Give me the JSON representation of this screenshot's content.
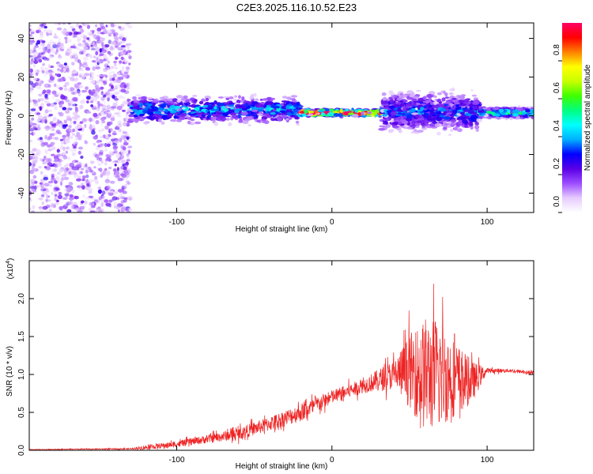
{
  "figure": {
    "title": "C2E3.2025.116.10.52.E23"
  },
  "chart_data": [
    {
      "type": "heatmap",
      "title": "C2E3.2025.116.10.52.E23",
      "xlabel": "Height of straight line (km)",
      "ylabel": "Frequency (Hz)",
      "xlim": [
        -195,
        130
      ],
      "ylim": [
        -50,
        48
      ],
      "xticks": [
        -100,
        0,
        100
      ],
      "xtick_labels": [
        "-100",
        "0",
        "100"
      ],
      "yticks": [
        -40,
        -20,
        0,
        20,
        40
      ],
      "ytick_labels": [
        "-40",
        "-20",
        "0",
        "20",
        "40"
      ],
      "colorbar": {
        "label": "Normalized spectral amplitude",
        "range": [
          0,
          1
        ],
        "ticks": [
          0.0,
          0.2,
          0.4,
          0.6,
          0.8
        ],
        "tick_labels": [
          "0.0",
          "0.2",
          "0.4",
          "0.6",
          "0.8"
        ],
        "colormap": [
          "#ffffff",
          "#e6ccff",
          "#9c4dff",
          "#5a00e6",
          "#0000ff",
          "#00b0ff",
          "#00ffff",
          "#00ff80",
          "#40ff00",
          "#c8ff00",
          "#ffff00",
          "#ff8000",
          "#ff0000",
          "#ff0066"
        ]
      },
      "regions": [
        {
          "x": [
            -195,
            -130
          ],
          "freq_center": 0,
          "freq_halfwidth": 48,
          "level": 0.15,
          "desc_level": "scattered"
        },
        {
          "x": [
            -130,
            -20
          ],
          "freq_center": 3,
          "freq_halfwidth": 8,
          "level": 0.35
        },
        {
          "x": [
            -20,
            32
          ],
          "freq_center": 1.5,
          "freq_halfwidth": 2,
          "level": 0.9
        },
        {
          "x": [
            32,
            95
          ],
          "freq_center": 2,
          "freq_halfwidth": 12,
          "level": 0.3
        },
        {
          "x": [
            95,
            130
          ],
          "freq_center": 1.5,
          "freq_halfwidth": 3,
          "level": 0.45
        }
      ]
    },
    {
      "type": "line",
      "xlabel": "Height of straight line (km)",
      "ylabel": "SNR (10 * v/v)",
      "y_multiplier": "(x10",
      "y_multiplier_exp": "4",
      "y_multiplier_close": ")",
      "xlim": [
        -195,
        130
      ],
      "ylim": [
        0,
        2.5
      ],
      "xticks": [
        -100,
        0,
        100
      ],
      "xtick_labels": [
        "-100",
        "0",
        "100"
      ],
      "yticks": [
        0.0,
        0.5,
        1.0,
        1.5,
        2.0
      ],
      "ytick_labels": [
        "0.0",
        "0.5",
        "1.0",
        "1.5",
        "2.0"
      ],
      "series": [
        {
          "color": "#ee2222",
          "envelope": {
            "x": [
              -195,
              -130,
              -120,
              -100,
              -80,
              -60,
              -40,
              -20,
              0,
              20,
              40,
              50,
              60,
              70,
              80,
              90,
              100,
              115,
              130
            ],
            "y_mean": [
              0.01,
              0.02,
              0.04,
              0.08,
              0.15,
              0.22,
              0.35,
              0.5,
              0.7,
              0.85,
              1.0,
              1.05,
              1.0,
              1.0,
              0.95,
              0.9,
              1.05,
              1.05,
              1.02
            ],
            "y_spread": [
              0.005,
              0.01,
              0.04,
              0.05,
              0.07,
              0.1,
              0.12,
              0.15,
              0.12,
              0.12,
              0.25,
              0.6,
              0.95,
              0.9,
              0.6,
              0.35,
              0.04,
              0.03,
              0.03
            ]
          }
        }
      ]
    }
  ]
}
